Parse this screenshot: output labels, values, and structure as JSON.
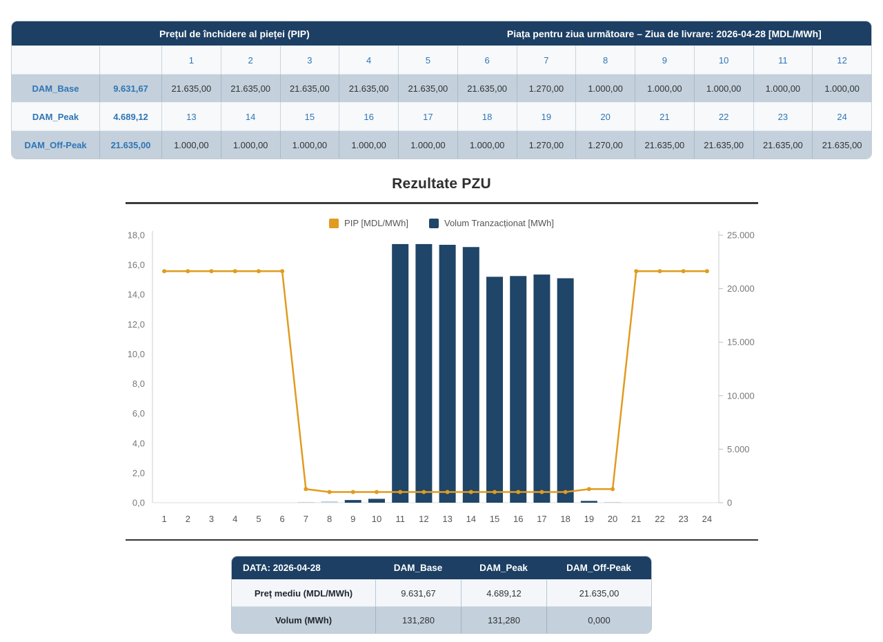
{
  "colors": {
    "navy_header": "#1C3F63",
    "accent_blue": "#2E75B6",
    "row_gray": "#C4D0DB",
    "row_white": "#F7F9FA",
    "bar": "#1F4568",
    "bar_muted": "#C6D2DD",
    "line": "#E19B1F"
  },
  "top_table": {
    "header_left": "Prețul de închidere al pieței (PIP)",
    "header_right": "Piața pentru ziua următoare – Ziua de livrare: 2026-04-28 [MDL/MWh]",
    "rows": [
      {
        "kind": "hours",
        "label": "",
        "value": "",
        "cells": [
          "1",
          "2",
          "3",
          "4",
          "5",
          "6",
          "7",
          "8",
          "9",
          "10",
          "11",
          "12"
        ]
      },
      {
        "kind": "data",
        "label": "DAM_Base",
        "value": "9.631,67",
        "cells": [
          "21.635,00",
          "21.635,00",
          "21.635,00",
          "21.635,00",
          "21.635,00",
          "21.635,00",
          "1.270,00",
          "1.000,00",
          "1.000,00",
          "1.000,00",
          "1.000,00",
          "1.000,00"
        ]
      },
      {
        "kind": "hours",
        "label": "DAM_Peak",
        "value": "4.689,12",
        "cells": [
          "13",
          "14",
          "15",
          "16",
          "17",
          "18",
          "19",
          "20",
          "21",
          "22",
          "23",
          "24"
        ]
      },
      {
        "kind": "data",
        "label": "DAM_Off-Peak",
        "value": "21.635,00",
        "cells": [
          "1.000,00",
          "1.000,00",
          "1.000,00",
          "1.000,00",
          "1.000,00",
          "1.000,00",
          "1.270,00",
          "1.270,00",
          "21.635,00",
          "21.635,00",
          "21.635,00",
          "21.635,00"
        ]
      }
    ]
  },
  "chart": {
    "title": "Rezultate PZU",
    "legend": [
      {
        "label": "PIP [MDL/MWh]",
        "color": "#E19B1F"
      },
      {
        "label": "Volum Tranzacționat [MWh]",
        "color": "#1F4568"
      }
    ]
  },
  "chart_data": {
    "type": "combo",
    "title": "Rezultate PZU",
    "x_categories": [
      "1",
      "2",
      "3",
      "4",
      "5",
      "6",
      "7",
      "8",
      "9",
      "10",
      "11",
      "12",
      "13",
      "14",
      "15",
      "16",
      "17",
      "18",
      "19",
      "20",
      "21",
      "22",
      "23",
      "24"
    ],
    "left_axis": {
      "min": 0,
      "max": 18,
      "step": 2,
      "tick_labels": [
        "0,0",
        "2,0",
        "4,0",
        "6,0",
        "8,0",
        "10,0",
        "12,0",
        "14,0",
        "16,0",
        "18,0"
      ]
    },
    "right_axis": {
      "min": 0,
      "max": 25000,
      "step": 5000,
      "tick_labels": [
        "0",
        "5.000",
        "10.000",
        "15.000",
        "20.000",
        "25.000"
      ]
    },
    "series": [
      {
        "name": "Volum Tranzacționat [MWh]",
        "type": "bar",
        "axis": "left",
        "color": "#1F4568",
        "muted_color": "#C6D2DD",
        "muted_points": [
          7,
          8,
          20
        ],
        "values": [
          0,
          0,
          0,
          0,
          0,
          0,
          0.05,
          0.1,
          0.18,
          0.26,
          17.4,
          17.4,
          17.35,
          17.2,
          15.2,
          15.25,
          15.35,
          15.1,
          0.12,
          0.05,
          0,
          0,
          0,
          0
        ]
      },
      {
        "name": "PIP [MDL/MWh]",
        "type": "line",
        "axis": "right",
        "color": "#E19B1F",
        "values": [
          21635,
          21635,
          21635,
          21635,
          21635,
          21635,
          1270,
          1000,
          1000,
          1000,
          1000,
          1000,
          1000,
          1000,
          1000,
          1000,
          1000,
          1000,
          1270,
          1270,
          21635,
          21635,
          21635,
          21635
        ]
      }
    ],
    "legend_position": "top-center",
    "grid": false
  },
  "bottom_table": {
    "header": [
      "DATA: 2026-04-28",
      "DAM_Base",
      "DAM_Peak",
      "DAM_Off-Peak"
    ],
    "rows": [
      {
        "label": "Preț mediu (MDL/MWh)",
        "values": [
          "9.631,67",
          "4.689,12",
          "21.635,00"
        ]
      },
      {
        "label": "Volum (MWh)",
        "values": [
          "131,280",
          "131,280",
          "0,000"
        ]
      }
    ]
  }
}
